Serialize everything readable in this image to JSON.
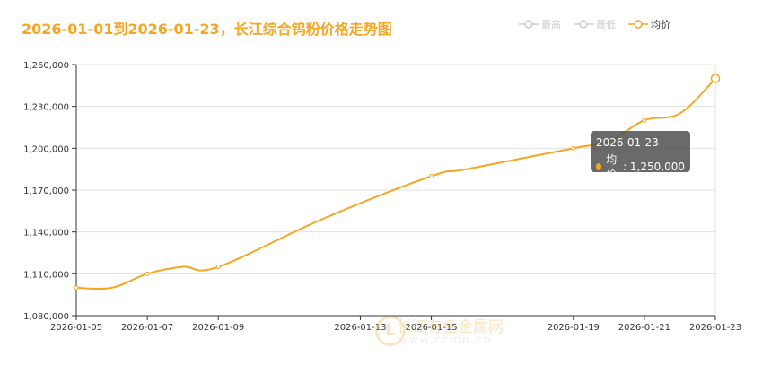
{
  "header": {
    "title": "2026-01-01到2026-01-23，长江综合钨粉价格走势图"
  },
  "legend": [
    {
      "label": "最高",
      "color": "#cccccc",
      "icon": "circle-line-icon"
    },
    {
      "label": "最低",
      "color": "#cccccc",
      "icon": "circle-line-icon"
    },
    {
      "label": "均价",
      "color": "#f5a623",
      "icon": "circle-line-icon"
    }
  ],
  "tooltip": {
    "date": "2026-01-23",
    "series": "均价",
    "value_text": "1,250,000"
  },
  "watermark": {
    "logo_letter": "L",
    "name": "长江有色金属网",
    "url": "www.ccmn.cn"
  },
  "colors": {
    "line": "#f5a623",
    "axis": "#333333",
    "grid": "#e0e0e0"
  },
  "chart_data": {
    "type": "line",
    "x_type": "date",
    "x_ticks": [
      "2026-01-05",
      "2026-01-07",
      "2026-01-09",
      "2026-01-13",
      "2026-01-15",
      "2026-01-19",
      "2026-01-21",
      "2026-01-23"
    ],
    "y_ticks": [
      1080000,
      1110000,
      1140000,
      1170000,
      1200000,
      1230000,
      1260000
    ],
    "y_tick_labels": [
      "1,080,000",
      "1,110,000",
      "1,140,000",
      "1,170,000",
      "1,200,000",
      "1,230,000",
      "1,260,000"
    ],
    "ylim": [
      1080000,
      1260000
    ],
    "grid": true,
    "legend_position": "top-right",
    "series": [
      {
        "name": "均价",
        "color": "#f5a623",
        "points": [
          {
            "x": "2026-01-05",
            "y": 1100000
          },
          {
            "x": "2026-01-06",
            "y": 1100000
          },
          {
            "x": "2026-01-07",
            "y": 1110000
          },
          {
            "x": "2026-01-08",
            "y": 1115000
          },
          {
            "x": "2026-01-09",
            "y": 1115000
          },
          {
            "x": "2026-01-12",
            "y": 1150000
          },
          {
            "x": "2026-01-15",
            "y": 1180000
          },
          {
            "x": "2026-01-16",
            "y": 1185000
          },
          {
            "x": "2026-01-19",
            "y": 1200000
          },
          {
            "x": "2026-01-20",
            "y": 1205000
          },
          {
            "x": "2026-01-21",
            "y": 1220000
          },
          {
            "x": "2026-01-22",
            "y": 1225000
          },
          {
            "x": "2026-01-23",
            "y": 1250000
          }
        ]
      }
    ]
  }
}
